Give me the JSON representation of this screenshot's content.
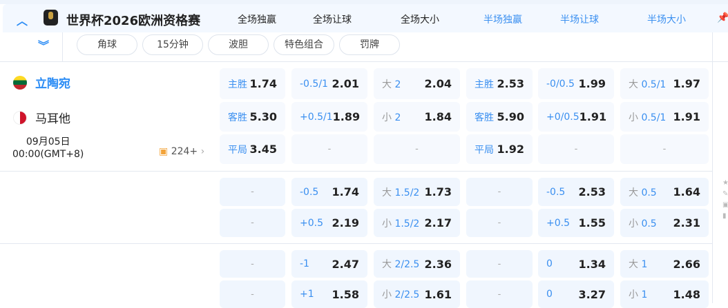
{
  "league": {
    "title": "世界杯2026欧洲资格赛"
  },
  "market_headers": [
    "全场独赢",
    "全场让球",
    "全场大小",
    "半场独赢",
    "半场让球",
    "半场大小"
  ],
  "filters": [
    "角球",
    "15分钟",
    "波胆",
    "特色组合",
    "罚牌"
  ],
  "match": {
    "home": "立陶宛",
    "away": "马耳他",
    "date": "09月05日",
    "time": "00:00(GMT+8)",
    "more_count": "224+"
  },
  "colors": {
    "accent": "#3a8ff0",
    "cell_bg": "#f0f6fe",
    "header_bg": "#f3f8ff"
  },
  "rows": [
    [
      {
        "l": "主胜",
        "v": "1.74"
      },
      {
        "l": "-0.5/1",
        "v": "2.01"
      },
      {
        "p": "大",
        "l": "2",
        "v": "2.04"
      },
      {
        "l": "主胜",
        "v": "2.53"
      },
      {
        "l": "-0/0.5",
        "v": "1.99"
      },
      {
        "p": "大",
        "l": "0.5/1",
        "v": "1.97"
      }
    ],
    [
      {
        "l": "客胜",
        "v": "5.30"
      },
      {
        "l": "+0.5/1",
        "v": "1.89"
      },
      {
        "p": "小",
        "l": "2",
        "v": "1.84"
      },
      {
        "l": "客胜",
        "v": "5.90"
      },
      {
        "l": "+0/0.5",
        "v": "1.91"
      },
      {
        "p": "小",
        "l": "0.5/1",
        "v": "1.91"
      }
    ],
    [
      {
        "l": "平局",
        "v": "3.45"
      },
      {
        "d": "-"
      },
      {
        "d": "-"
      },
      {
        "l": "平局",
        "v": "1.92"
      },
      {
        "d": "-"
      },
      {
        "d": "-"
      }
    ],
    [
      {
        "d": "-"
      },
      {
        "l": "-0.5",
        "v": "1.74"
      },
      {
        "p": "大",
        "l": "1.5/2",
        "v": "1.73"
      },
      {
        "d": "-"
      },
      {
        "l": "-0.5",
        "v": "2.53"
      },
      {
        "p": "大",
        "l": "0.5",
        "v": "1.64"
      }
    ],
    [
      {
        "d": "-"
      },
      {
        "l": "+0.5",
        "v": "2.19"
      },
      {
        "p": "小",
        "l": "1.5/2",
        "v": "2.17"
      },
      {
        "d": "-"
      },
      {
        "l": "+0.5",
        "v": "1.55"
      },
      {
        "p": "小",
        "l": "0.5",
        "v": "2.31"
      }
    ],
    [
      {
        "d": "-"
      },
      {
        "l": "-1",
        "v": "2.47"
      },
      {
        "p": "大",
        "l": "2/2.5",
        "v": "2.36"
      },
      {
        "d": "-"
      },
      {
        "l": "0",
        "v": "1.34"
      },
      {
        "p": "大",
        "l": "1",
        "v": "2.66"
      }
    ],
    [
      {
        "d": "-"
      },
      {
        "l": "+1",
        "v": "1.58"
      },
      {
        "p": "小",
        "l": "2/2.5",
        "v": "1.61"
      },
      {
        "d": "-"
      },
      {
        "l": "0",
        "v": "3.27"
      },
      {
        "p": "小",
        "l": "1",
        "v": "1.48"
      }
    ]
  ]
}
